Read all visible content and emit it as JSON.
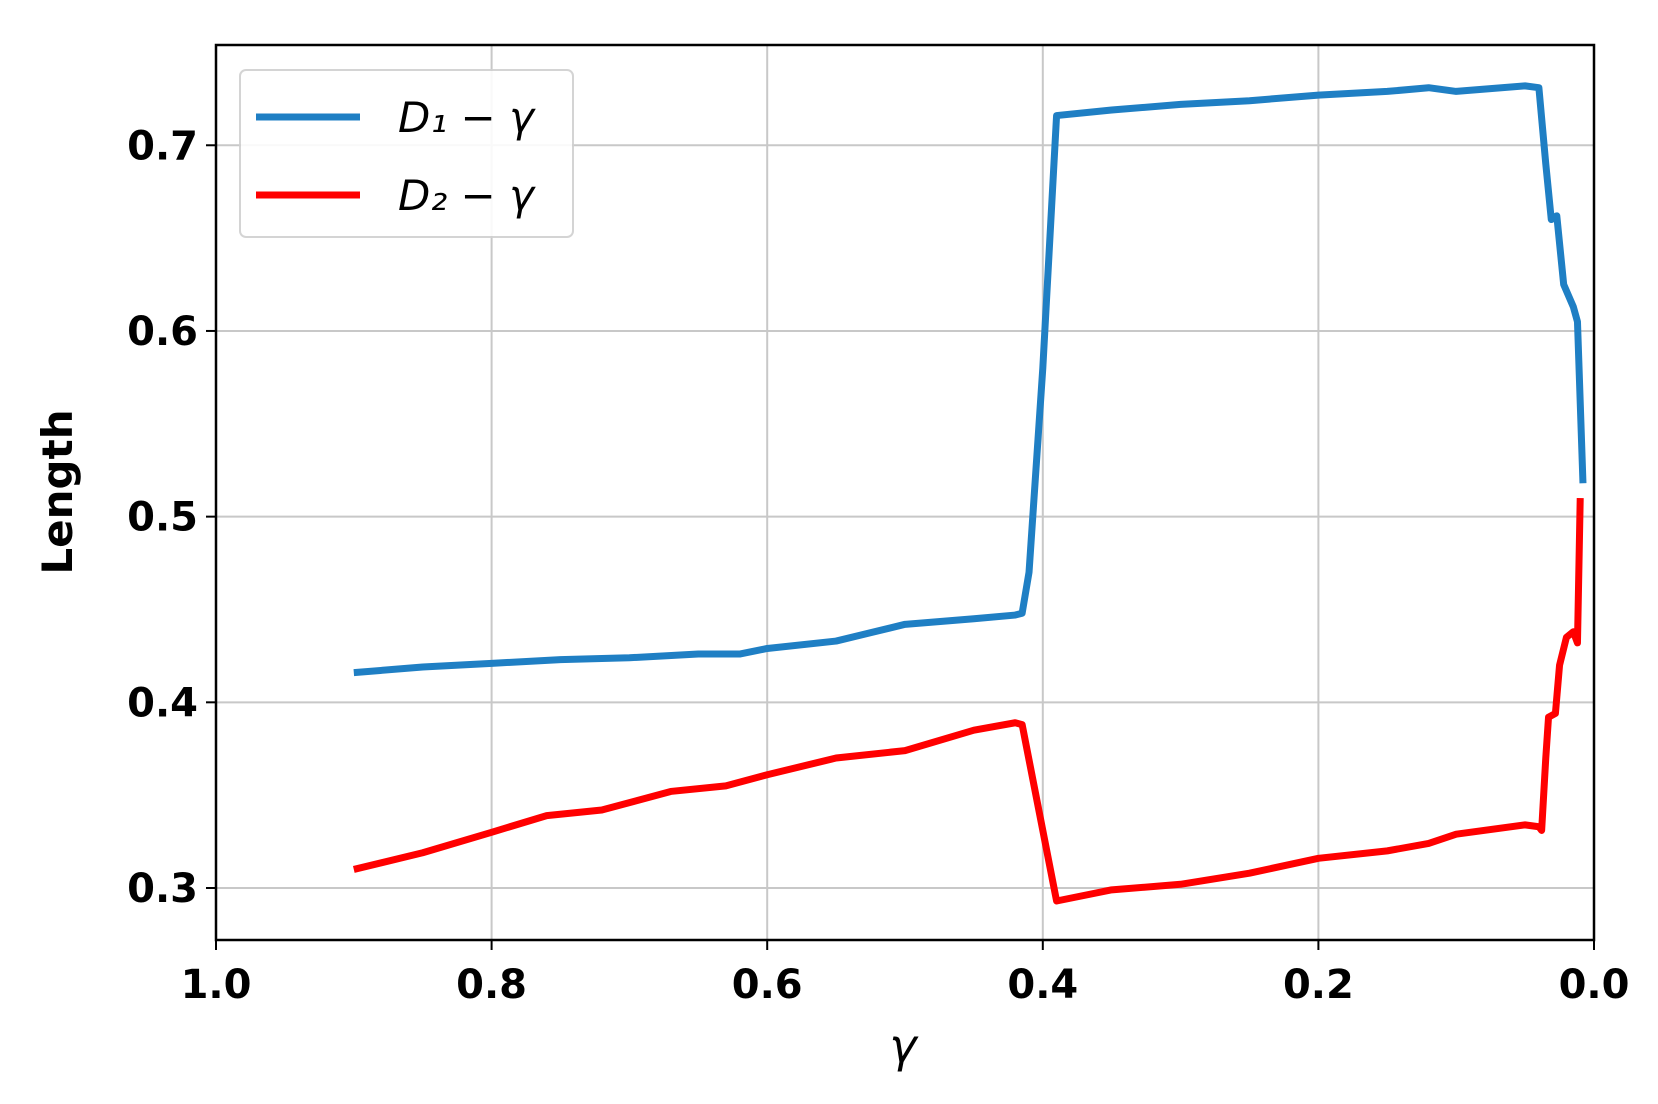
{
  "chart_data": {
    "type": "line",
    "xlabel": "γ",
    "ylabel": "Length",
    "xlim": [
      1.0,
      0.0
    ],
    "ylim": [
      0.272,
      0.754
    ],
    "xticks": [
      {
        "value": 1,
        "label": "1.0"
      },
      0.8,
      0.6,
      0.4,
      0.2,
      {
        "value": 0,
        "label": "0.0"
      }
    ],
    "yticks": [
      0.3,
      0.4,
      0.5,
      0.6,
      0.7
    ],
    "grid": true,
    "legend": "upper left",
    "series": [
      {
        "name": "D₁ − γ",
        "color": "#1f7fc4",
        "x": [
          0.9,
          0.85,
          0.8,
          0.75,
          0.7,
          0.65,
          0.62,
          0.6,
          0.55,
          0.5,
          0.45,
          0.42,
          0.415,
          0.41,
          0.4,
          0.39,
          0.35,
          0.3,
          0.25,
          0.2,
          0.15,
          0.12,
          0.1,
          0.05,
          0.04,
          0.035,
          0.031,
          0.027,
          0.022,
          0.015,
          0.012,
          0.008
        ],
        "values": [
          0.416,
          0.419,
          0.421,
          0.423,
          0.424,
          0.426,
          0.426,
          0.429,
          0.433,
          0.442,
          0.445,
          0.447,
          0.448,
          0.47,
          0.58,
          0.716,
          0.719,
          0.722,
          0.724,
          0.727,
          0.729,
          0.731,
          0.729,
          0.732,
          0.731,
          0.69,
          0.66,
          0.662,
          0.625,
          0.613,
          0.605,
          0.518
        ]
      },
      {
        "name": "D₂ − γ",
        "color": "#ff0000",
        "x": [
          0.9,
          0.85,
          0.8,
          0.76,
          0.72,
          0.67,
          0.63,
          0.6,
          0.55,
          0.5,
          0.45,
          0.42,
          0.415,
          0.39,
          0.35,
          0.3,
          0.25,
          0.2,
          0.15,
          0.12,
          0.1,
          0.05,
          0.04,
          0.038,
          0.035,
          0.033,
          0.028,
          0.025,
          0.02,
          0.015,
          0.012,
          0.01
        ],
        "values": [
          0.31,
          0.319,
          0.33,
          0.339,
          0.342,
          0.352,
          0.355,
          0.361,
          0.37,
          0.374,
          0.385,
          0.389,
          0.388,
          0.293,
          0.299,
          0.302,
          0.308,
          0.316,
          0.32,
          0.324,
          0.329,
          0.334,
          0.333,
          0.331,
          0.37,
          0.392,
          0.394,
          0.42,
          0.435,
          0.438,
          0.432,
          0.51
        ]
      }
    ]
  }
}
